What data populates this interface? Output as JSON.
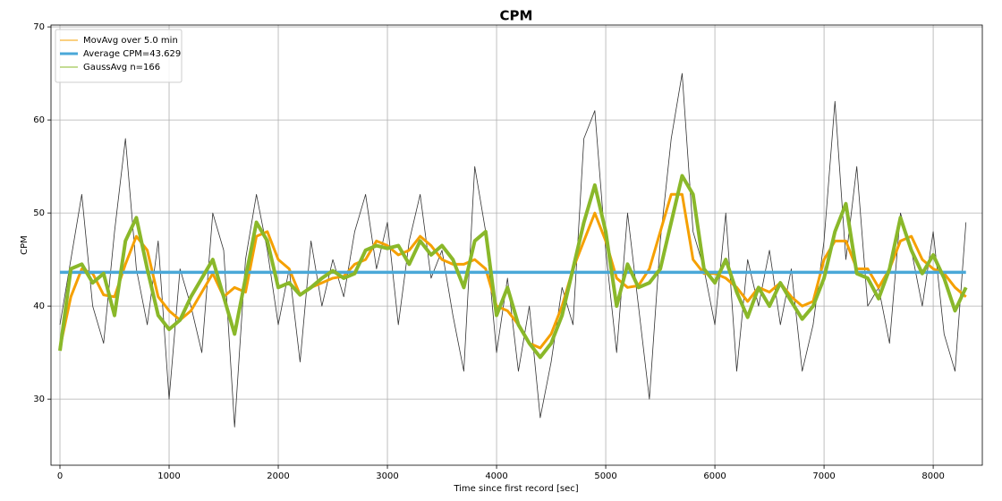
{
  "chart_data": {
    "type": "line",
    "title": "CPM",
    "xlabel": "Time since first record [sec]",
    "ylabel": "CPM",
    "x": [
      0,
      100,
      200,
      300,
      400,
      500,
      600,
      700,
      800,
      900,
      1000,
      1100,
      1200,
      1300,
      1400,
      1500,
      1600,
      1700,
      1800,
      1900,
      2000,
      2100,
      2200,
      2300,
      2400,
      2500,
      2600,
      2700,
      2800,
      2900,
      3000,
      3100,
      3200,
      3300,
      3400,
      3500,
      3600,
      3700,
      3800,
      3900,
      4000,
      4100,
      4200,
      4300,
      4400,
      4500,
      4600,
      4700,
      4800,
      4900,
      5000,
      5100,
      5200,
      5300,
      5400,
      5500,
      5600,
      5700,
      5800,
      5900,
      6000,
      6100,
      6200,
      6300,
      6400,
      6500,
      6600,
      6700,
      6800,
      6900,
      7000,
      7100,
      7200,
      7300,
      7400,
      7500,
      7600,
      7700,
      7800,
      7900,
      8000,
      8100,
      8200,
      8300
    ],
    "series": [
      {
        "color": "#333333",
        "values": [
          38,
          45,
          52,
          40,
          36,
          48,
          58,
          44,
          38,
          47,
          30,
          44,
          40,
          35,
          50,
          46,
          27,
          45,
          52,
          46,
          38,
          44,
          34,
          47,
          40,
          45,
          41,
          48,
          52,
          44,
          49,
          38,
          47,
          52,
          43,
          46,
          39,
          33,
          55,
          48,
          35,
          43,
          33,
          40,
          28,
          34,
          42,
          38,
          58,
          61,
          46,
          35,
          50,
          40,
          30,
          47,
          58,
          65,
          48,
          44,
          38,
          50,
          33,
          45,
          40,
          46,
          38,
          44,
          33,
          38,
          47,
          62,
          45,
          55,
          40,
          42,
          36,
          50,
          46,
          40,
          48,
          37,
          33,
          49
        ]
      },
      {
        "name": "MovAvg over 5.0 min",
        "color": "#f5a000",
        "values": [
          35.5,
          41,
          44,
          43.5,
          41.2,
          41,
          44.5,
          47.5,
          46,
          41,
          39.5,
          38.5,
          39.5,
          41.5,
          43.5,
          41,
          42,
          41.5,
          47.5,
          48,
          45,
          44,
          41.2,
          42,
          42.5,
          43,
          43.2,
          44.5,
          45,
          47,
          46.5,
          45.5,
          46,
          47.5,
          46.5,
          45,
          44.5,
          44.5,
          45,
          44,
          40,
          39.5,
          38,
          36,
          35.5,
          37,
          40,
          44,
          47,
          50,
          47,
          43,
          42,
          42.2,
          44,
          48,
          52,
          52,
          45,
          43.5,
          43.5,
          43,
          42,
          40.5,
          42,
          41.5,
          42.5,
          41,
          40,
          40.5,
          45,
          47,
          47,
          44,
          44,
          42,
          44,
          47,
          47.5,
          45,
          44,
          43.5,
          42,
          41
        ]
      },
      {
        "name": "GaussAvg n=166",
        "color": "#8ab82a",
        "values": [
          35.2,
          44,
          44.5,
          42.5,
          43.5,
          39,
          47,
          49.5,
          44,
          39,
          37.5,
          38.5,
          41,
          43,
          45,
          41,
          37,
          43,
          49,
          47,
          42,
          42.5,
          41.2,
          42,
          43,
          43.8,
          43,
          43.5,
          46,
          46.5,
          46.2,
          46.5,
          44.5,
          47,
          45.5,
          46.5,
          45,
          42,
          47,
          48,
          39,
          42,
          38,
          36,
          34.5,
          36,
          39,
          44,
          49,
          53,
          48,
          40,
          44.5,
          42,
          42.5,
          44,
          49,
          54,
          52,
          44,
          42.5,
          45,
          41.5,
          38.8,
          42,
          40,
          42.5,
          40.5,
          38.6,
          40,
          43,
          48,
          51,
          43.5,
          43,
          40.8,
          44,
          49.5,
          46,
          43.5,
          45.5,
          43,
          39.5,
          42
        ]
      }
    ],
    "hline": {
      "name": "Average CPM=43.629",
      "color": "#4aa8d8",
      "value": 43.629
    },
    "xlim": [
      -82,
      8450
    ],
    "ylim": [
      22.9,
      70.2
    ],
    "xticks": [
      0,
      1000,
      2000,
      3000,
      4000,
      5000,
      6000,
      7000,
      8000
    ],
    "yticks": [
      30,
      40,
      50,
      60,
      70
    ],
    "grid": true,
    "legend": "upper left"
  }
}
